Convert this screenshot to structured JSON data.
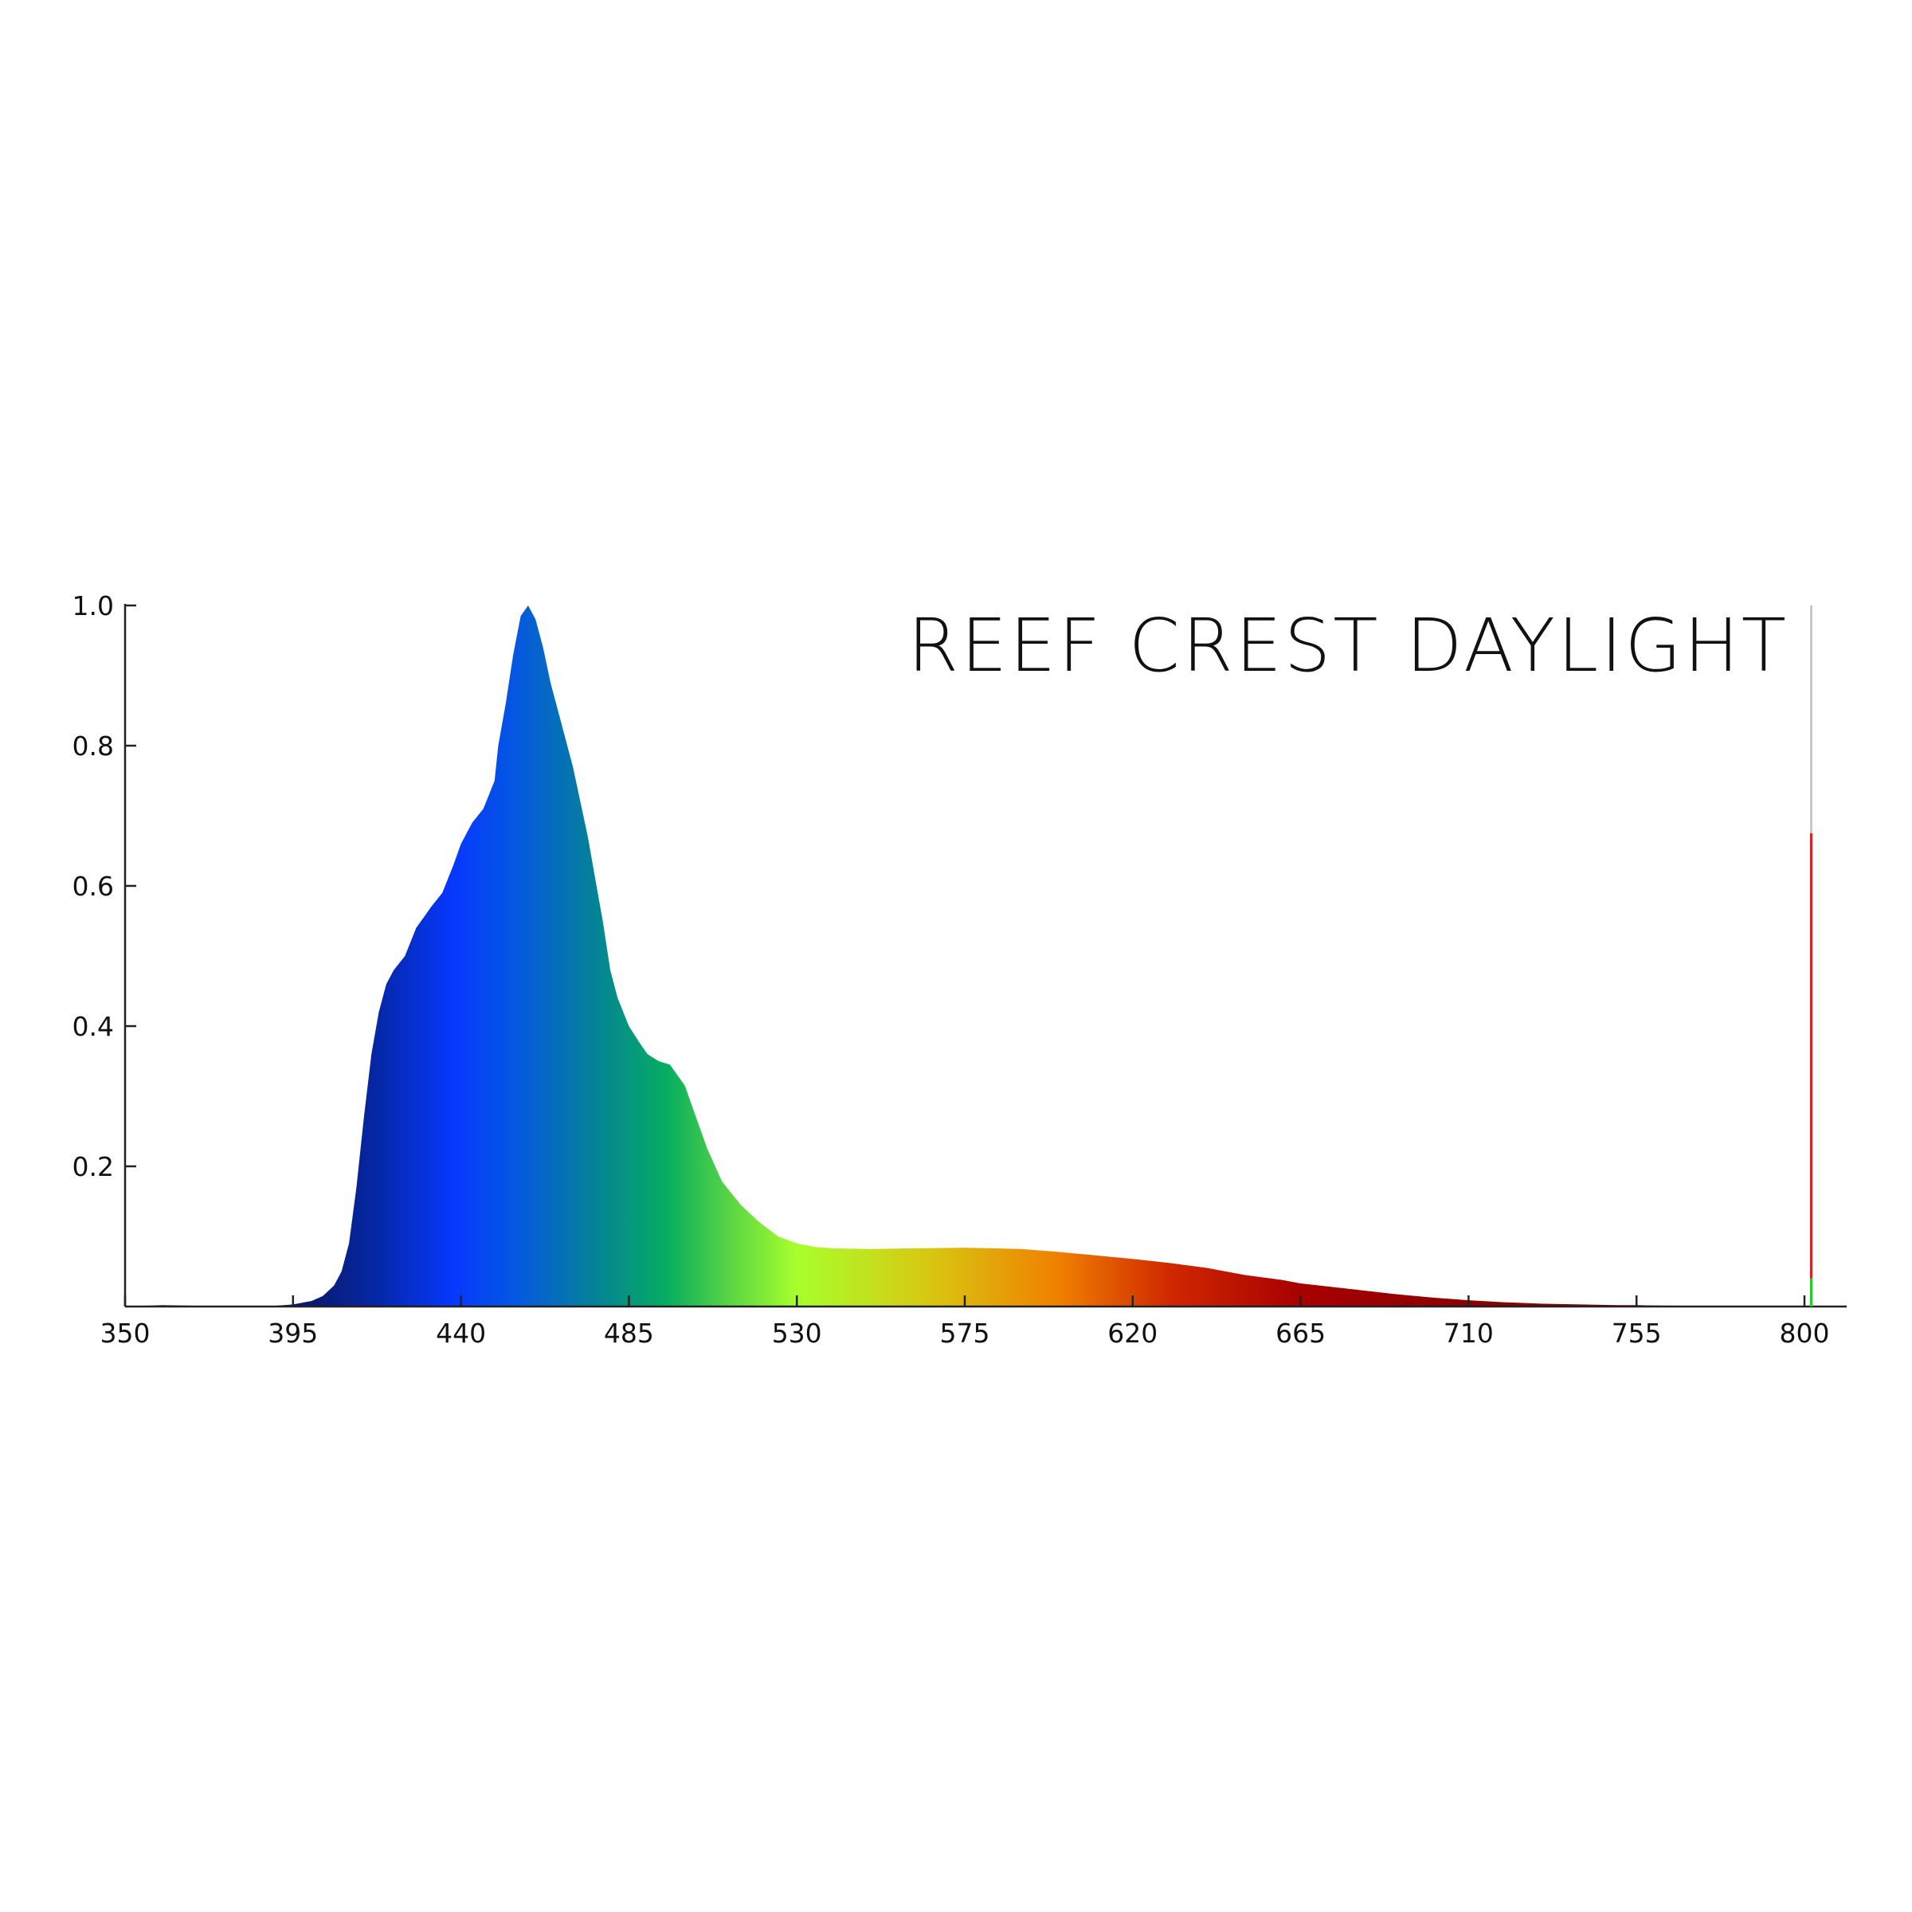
{
  "chart_data": {
    "type": "area",
    "title": "REEF CREST DAYLIGHT",
    "xlabel": "",
    "ylabel": "",
    "xlim": [
      350,
      800
    ],
    "ylim": [
      0,
      1.0
    ],
    "x_ticks": [
      350,
      395,
      440,
      485,
      530,
      575,
      620,
      665,
      710,
      755,
      800
    ],
    "y_ticks": [
      0.2,
      0.4,
      0.6,
      0.8,
      1.0
    ],
    "y_tick_labels": [
      "0.2",
      "0.4",
      "0.6",
      "0.8",
      "1.0"
    ],
    "grid": false,
    "legend": "none",
    "fill": "spectral gradient by wavelength",
    "gradient_colors": [
      {
        "x": 400,
        "color": "#0a1a70"
      },
      {
        "x": 418,
        "color": "#0528a8"
      },
      {
        "x": 438,
        "color": "#0638ff"
      },
      {
        "x": 455,
        "color": "#0559e0"
      },
      {
        "x": 475,
        "color": "#05809a"
      },
      {
        "x": 495,
        "color": "#05ad60"
      },
      {
        "x": 510,
        "color": "#50d048"
      },
      {
        "x": 530,
        "color": "#a8ff2c"
      },
      {
        "x": 565,
        "color": "#d8c812"
      },
      {
        "x": 600,
        "color": "#f08000"
      },
      {
        "x": 630,
        "color": "#d02800"
      },
      {
        "x": 665,
        "color": "#a80000"
      },
      {
        "x": 700,
        "color": "#900000"
      },
      {
        "x": 800,
        "color": "#700000"
      }
    ],
    "x": [
      350,
      360,
      370,
      380,
      390,
      395,
      400,
      403,
      406,
      408,
      410,
      412,
      414,
      416,
      418,
      420,
      422,
      425,
      428,
      430,
      432,
      435,
      438,
      440,
      443,
      446,
      449,
      450,
      452,
      454,
      456,
      458,
      460,
      462,
      464,
      466,
      468,
      470,
      472,
      474,
      476,
      478,
      480,
      482,
      485,
      488,
      490,
      493,
      496,
      500,
      503,
      506,
      510,
      515,
      520,
      525,
      530,
      535,
      540,
      550,
      560,
      575,
      590,
      600,
      610,
      620,
      630,
      640,
      650,
      660,
      665,
      670,
      680,
      690,
      700,
      710,
      720,
      730,
      740,
      750,
      755,
      760,
      770,
      780,
      790,
      800
    ],
    "values": [
      0.0,
      0.002,
      0.001,
      0.0,
      0.001,
      0.003,
      0.008,
      0.015,
      0.03,
      0.05,
      0.09,
      0.17,
      0.27,
      0.36,
      0.42,
      0.46,
      0.48,
      0.5,
      0.54,
      0.555,
      0.57,
      0.59,
      0.63,
      0.66,
      0.69,
      0.71,
      0.75,
      0.8,
      0.86,
      0.93,
      0.985,
      1.0,
      0.98,
      0.94,
      0.89,
      0.85,
      0.81,
      0.77,
      0.72,
      0.67,
      0.61,
      0.55,
      0.48,
      0.44,
      0.4,
      0.375,
      0.36,
      0.35,
      0.345,
      0.315,
      0.27,
      0.225,
      0.178,
      0.145,
      0.12,
      0.1,
      0.09,
      0.085,
      0.083,
      0.082,
      0.083,
      0.084,
      0.082,
      0.078,
      0.073,
      0.068,
      0.062,
      0.055,
      0.045,
      0.038,
      0.033,
      0.03,
      0.024,
      0.018,
      0.013,
      0.009,
      0.006,
      0.004,
      0.003,
      0.002,
      0.002,
      0.0015,
      0.001,
      0.001,
      0.001,
      0.0
    ]
  },
  "side_bar": {
    "max": 1.0,
    "level": 0.675,
    "green_level": 0.04,
    "colors": {
      "track": "#c8c8c8",
      "fill": "#e02020",
      "base": "#22cc22"
    }
  }
}
